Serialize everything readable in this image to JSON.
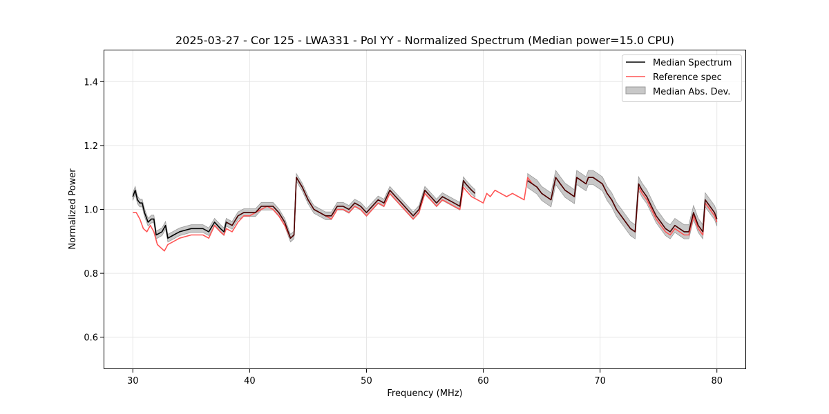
{
  "chart_data": {
    "type": "line",
    "title": "2025-03-27 - Cor 125 - LWA331 - Pol YY - Normalized Spectrum (Median power=15.0 CPU)",
    "xlabel": "Frequency (MHz)",
    "ylabel": "Normalized Power",
    "xlim": [
      27.5,
      82.5
    ],
    "ylim": [
      0.5,
      1.5
    ],
    "xticks": [
      30,
      40,
      50,
      60,
      70,
      80
    ],
    "xtick_labels": [
      "30",
      "40",
      "50",
      "60",
      "70",
      "80"
    ],
    "yticks": [
      0.6,
      0.8,
      1.0,
      1.2,
      1.4
    ],
    "ytick_labels": [
      "0.6",
      "0.8",
      "1.0",
      "1.2",
      "1.4"
    ],
    "grid": true,
    "legend_position": "top-right",
    "legend": [
      "Median Spectrum",
      "Reference spec",
      "Median Abs. Dev."
    ],
    "colors": {
      "median": "#000000",
      "reference": "#ff5555",
      "mad_fill": "#c8c8c8",
      "mad_edge": "#9a9a9a",
      "overlap": "#8b0000"
    },
    "median_spectrum": {
      "name": "Median Spectrum",
      "segments": [
        {
          "x": [
            30.0,
            30.2,
            30.4,
            30.6,
            30.8,
            31.0,
            31.3,
            31.6,
            31.8,
            32.0,
            32.5,
            32.8,
            33.0,
            33.5,
            34.0,
            35.0,
            35.5,
            36.0,
            36.5,
            37.0,
            37.5,
            37.8,
            38.0,
            38.5,
            39.0,
            39.5,
            40.0,
            40.5,
            41.0,
            41.5,
            42.0,
            42.5,
            43.0,
            43.5,
            43.8,
            44.0,
            44.5,
            45.0,
            45.5,
            46.0,
            46.5,
            47.0,
            47.5,
            47.8,
            48.0,
            48.5,
            49.0,
            49.5,
            50.0,
            50.5,
            51.0,
            51.5,
            52.0,
            52.5,
            53.0,
            53.5,
            54.0,
            54.5,
            55.0,
            55.5,
            56.0,
            56.5,
            57.0,
            57.5,
            58.0,
            58.3,
            58.5,
            59.0,
            59.3
          ],
          "y": [
            1.04,
            1.06,
            1.03,
            1.02,
            1.02,
            0.99,
            0.96,
            0.97,
            0.97,
            0.92,
            0.93,
            0.95,
            0.91,
            0.92,
            0.93,
            0.94,
            0.94,
            0.94,
            0.93,
            0.96,
            0.94,
            0.93,
            0.96,
            0.95,
            0.98,
            0.99,
            0.99,
            0.99,
            1.01,
            1.01,
            1.01,
            0.99,
            0.96,
            0.91,
            0.92,
            1.1,
            1.07,
            1.03,
            1.0,
            0.99,
            0.98,
            0.98,
            1.01,
            1.01,
            1.01,
            1.0,
            1.02,
            1.01,
            0.99,
            1.01,
            1.03,
            1.02,
            1.06,
            1.04,
            1.02,
            1.0,
            0.98,
            1.0,
            1.06,
            1.04,
            1.02,
            1.04,
            1.03,
            1.02,
            1.01,
            1.09,
            1.08,
            1.06,
            1.05
          ]
        },
        {
          "x": [
            63.8,
            64.2,
            64.6,
            65.0,
            65.4,
            65.8,
            66.2,
            66.6,
            67.0,
            67.4,
            67.8,
            68.0,
            68.4,
            68.8,
            69.0,
            69.4,
            69.8,
            70.2,
            70.6,
            71.0,
            71.4,
            71.8,
            72.2,
            72.6,
            73.0,
            73.3,
            73.6,
            74.0,
            74.4,
            74.8,
            75.2,
            75.6,
            76.0,
            76.4,
            76.8,
            77.2,
            77.6,
            78.0,
            78.4,
            78.8,
            79.0,
            79.4,
            79.8,
            80.0
          ],
          "y": [
            1.09,
            1.08,
            1.07,
            1.05,
            1.04,
            1.03,
            1.1,
            1.08,
            1.06,
            1.05,
            1.04,
            1.1,
            1.09,
            1.08,
            1.1,
            1.1,
            1.09,
            1.08,
            1.05,
            1.03,
            1.0,
            0.98,
            0.96,
            0.94,
            0.93,
            1.08,
            1.06,
            1.04,
            1.01,
            0.98,
            0.96,
            0.94,
            0.93,
            0.95,
            0.94,
            0.93,
            0.93,
            0.99,
            0.95,
            0.93,
            1.03,
            1.01,
            0.99,
            0.97
          ]
        }
      ]
    },
    "reference_spectrum": {
      "name": "Reference spec",
      "x": [
        30.0,
        30.3,
        30.6,
        30.9,
        31.2,
        31.5,
        31.8,
        32.1,
        32.4,
        32.7,
        33.0,
        33.5,
        34.0,
        35.0,
        35.5,
        36.0,
        36.5,
        37.0,
        37.5,
        37.8,
        38.0,
        38.5,
        39.0,
        39.5,
        40.0,
        40.5,
        41.0,
        41.5,
        42.0,
        42.5,
        43.0,
        43.5,
        43.8,
        44.0,
        44.5,
        45.0,
        45.5,
        46.0,
        46.5,
        47.0,
        47.5,
        47.8,
        48.0,
        48.5,
        49.0,
        49.5,
        50.0,
        50.5,
        51.0,
        51.5,
        52.0,
        52.5,
        53.0,
        53.5,
        54.0,
        54.5,
        55.0,
        55.5,
        56.0,
        56.5,
        57.0,
        57.5,
        58.0,
        58.3,
        58.5,
        59.0,
        59.5,
        60.0,
        60.3,
        60.6,
        61.0,
        61.5,
        62.0,
        62.5,
        63.0,
        63.5,
        63.8,
        64.2,
        64.6,
        65.0,
        65.4,
        65.8,
        66.2,
        66.6,
        67.0,
        67.4,
        67.8,
        68.0,
        68.4,
        68.8,
        69.0,
        69.4,
        69.8,
        70.2,
        70.6,
        71.0,
        71.4,
        71.8,
        72.2,
        72.6,
        73.0,
        73.3,
        73.6,
        74.0,
        74.4,
        74.8,
        75.2,
        75.6,
        76.0,
        76.4,
        76.8,
        77.2,
        77.6,
        78.0,
        78.4,
        78.8,
        79.0,
        79.4,
        79.8,
        80.0
      ],
      "y": [
        0.99,
        0.99,
        0.97,
        0.94,
        0.93,
        0.95,
        0.93,
        0.89,
        0.88,
        0.87,
        0.89,
        0.9,
        0.91,
        0.92,
        0.92,
        0.92,
        0.91,
        0.95,
        0.93,
        0.92,
        0.94,
        0.93,
        0.96,
        0.98,
        0.98,
        0.99,
        1.0,
        1.01,
        1.0,
        0.98,
        0.95,
        0.91,
        0.92,
        1.1,
        1.07,
        1.03,
        1.0,
        0.99,
        0.98,
        0.97,
        1.0,
        1.0,
        1.0,
        0.99,
        1.01,
        1.0,
        0.98,
        1.0,
        1.02,
        1.01,
        1.05,
        1.03,
        1.01,
        0.99,
        0.97,
        0.99,
        1.05,
        1.03,
        1.01,
        1.03,
        1.02,
        1.01,
        1.0,
        1.07,
        1.06,
        1.04,
        1.03,
        1.02,
        1.05,
        1.04,
        1.06,
        1.05,
        1.04,
        1.05,
        1.04,
        1.03,
        1.1,
        1.08,
        1.07,
        1.05,
        1.04,
        1.03,
        1.1,
        1.08,
        1.06,
        1.05,
        1.04,
        1.1,
        1.09,
        1.08,
        1.1,
        1.1,
        1.09,
        1.08,
        1.05,
        1.03,
        1.0,
        0.98,
        0.96,
        0.94,
        0.93,
        1.07,
        1.05,
        1.03,
        1.0,
        0.97,
        0.95,
        0.93,
        0.92,
        0.94,
        0.93,
        0.92,
        0.92,
        0.98,
        0.94,
        0.92,
        1.02,
        1.0,
        0.98,
        0.96
      ]
    },
    "median_abs_dev": {
      "name": "Median Abs. Dev.",
      "half_width_segments": [
        {
          "x_range": [
            30.0,
            59.3
          ],
          "value": 0.012
        },
        {
          "x_range": [
            63.8,
            80.0
          ],
          "value": 0.022
        }
      ]
    }
  }
}
